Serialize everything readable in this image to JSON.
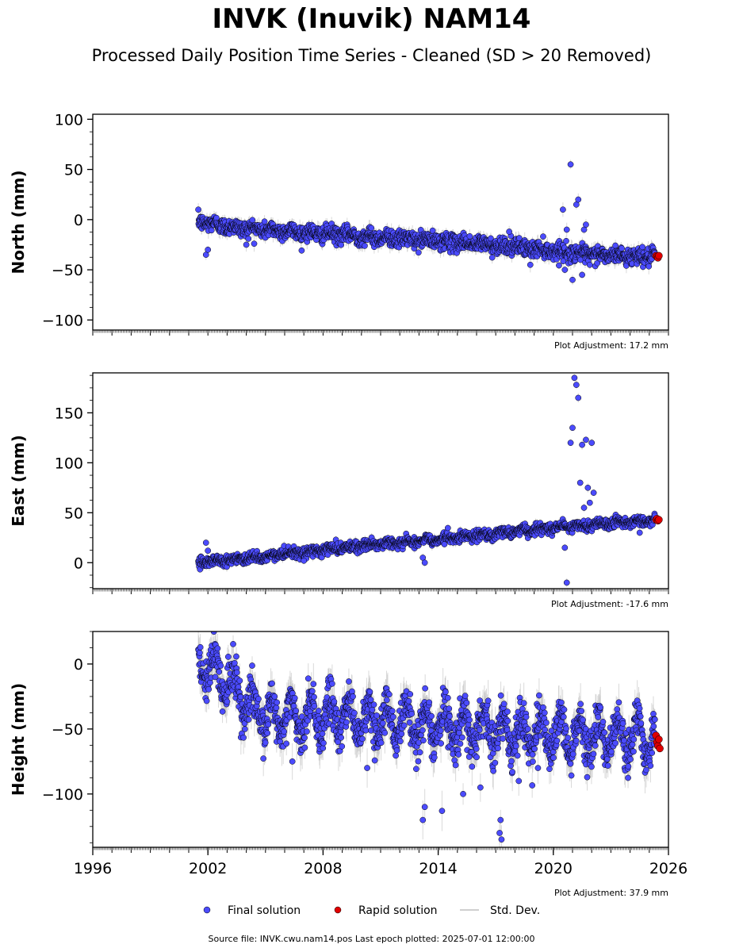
{
  "title": "INVK (Inuvik) NAM14",
  "subtitle": "Processed Daily Position Time Series - Cleaned (SD > 20 Removed)",
  "footer": "Source file: INVK.cwu.nam14.pos  Last epoch plotted: 2025-07-01 12:00:00",
  "colors": {
    "final": "#4b4bff",
    "rapid": "#e00000",
    "stddev": "#bfbfbf",
    "edge": "#000000"
  },
  "legend": [
    {
      "key": "final",
      "label": "Final solution"
    },
    {
      "key": "rapid",
      "label": "Rapid solution"
    },
    {
      "key": "stddev",
      "label": "Std. Dev."
    }
  ],
  "chart_data": [
    {
      "type": "scatter",
      "ylabel": "North (mm)",
      "xlim": [
        1996,
        2026
      ],
      "ylim": [
        -110,
        105
      ],
      "yticks": [
        -100,
        -50,
        0,
        50,
        100
      ],
      "adjustment": "Plot Adjustment: 17.2 mm",
      "trend_points": [
        [
          2001.5,
          -2
        ],
        [
          2003.5,
          -8
        ],
        [
          2008,
          -14
        ],
        [
          2012,
          -19
        ],
        [
          2016,
          -24
        ],
        [
          2018.5,
          -28
        ],
        [
          2020,
          -31
        ],
        [
          2022,
          -35
        ],
        [
          2025.5,
          -37
        ]
      ],
      "scatter_sd": 4,
      "seasonal_amp": 1.5,
      "outliers": [
        [
          2001.9,
          -35
        ],
        [
          2002.0,
          -30
        ],
        [
          2004.0,
          -25
        ],
        [
          2017.7,
          -12
        ],
        [
          2018.8,
          -45
        ],
        [
          2020.5,
          10
        ],
        [
          2020.6,
          -50
        ],
        [
          2020.7,
          -10
        ],
        [
          2020.9,
          55
        ],
        [
          2021.0,
          -60
        ],
        [
          2021.2,
          15
        ],
        [
          2021.3,
          20
        ],
        [
          2021.5,
          -55
        ],
        [
          2021.6,
          -10
        ],
        [
          2021.7,
          -5
        ],
        [
          2021.9,
          -45
        ]
      ],
      "rapid": [
        [
          2025.35,
          -36
        ],
        [
          2025.4,
          -37
        ],
        [
          2025.45,
          -38
        ],
        [
          2025.5,
          -36
        ]
      ]
    },
    {
      "type": "scatter",
      "ylabel": "East (mm)",
      "xlim": [
        1996,
        2026
      ],
      "ylim": [
        -26,
        190
      ],
      "yticks": [
        0,
        50,
        100,
        150
      ],
      "adjustment": "Plot Adjustment: -17.6 mm",
      "trend_points": [
        [
          2001.5,
          0
        ],
        [
          2005,
          6
        ],
        [
          2010,
          17
        ],
        [
          2013,
          22
        ],
        [
          2016,
          27
        ],
        [
          2019,
          33
        ],
        [
          2022,
          38
        ],
        [
          2025.5,
          43
        ]
      ],
      "scatter_sd": 2.5,
      "seasonal_amp": 1.5,
      "outliers": [
        [
          2001.9,
          20
        ],
        [
          2002.0,
          12
        ],
        [
          2007.0,
          2
        ],
        [
          2013.2,
          5
        ],
        [
          2013.3,
          0
        ],
        [
          2020.6,
          15
        ],
        [
          2020.7,
          -20
        ],
        [
          2020.9,
          120
        ],
        [
          2021.0,
          135
        ],
        [
          2021.1,
          185
        ],
        [
          2021.2,
          178
        ],
        [
          2021.3,
          165
        ],
        [
          2021.4,
          80
        ],
        [
          2021.5,
          118
        ],
        [
          2021.6,
          55
        ],
        [
          2021.7,
          123
        ],
        [
          2021.8,
          75
        ],
        [
          2021.9,
          60
        ],
        [
          2022.0,
          120
        ],
        [
          2022.1,
          70
        ],
        [
          2024.5,
          30
        ]
      ],
      "rapid": [
        [
          2025.35,
          43
        ],
        [
          2025.4,
          44
        ],
        [
          2025.45,
          42
        ],
        [
          2025.5,
          43
        ]
      ]
    },
    {
      "type": "scatter",
      "ylabel": "Height (mm)",
      "xlim": [
        1996,
        2026
      ],
      "ylim": [
        -141,
        25
      ],
      "yticks": [
        -100,
        -50,
        0
      ],
      "xticks": [
        1996,
        2002,
        2008,
        2014,
        2020,
        2026
      ],
      "adjustment": "Plot Adjustment: 37.9 mm",
      "trend_points": [
        [
          2001.5,
          0
        ],
        [
          2002.5,
          -5
        ],
        [
          2003.5,
          -25
        ],
        [
          2005,
          -40
        ],
        [
          2008,
          -40
        ],
        [
          2012,
          -45
        ],
        [
          2016,
          -50
        ],
        [
          2020,
          -55
        ],
        [
          2025.5,
          -58
        ]
      ],
      "scatter_sd": 8,
      "seasonal_amp": 14,
      "outliers": [
        [
          2013.2,
          -120
        ],
        [
          2013.3,
          -110
        ],
        [
          2014.2,
          -113
        ],
        [
          2015.3,
          -100
        ],
        [
          2016.2,
          -95
        ],
        [
          2017.2,
          -130
        ],
        [
          2017.3,
          -135
        ],
        [
          2017.25,
          -120
        ],
        [
          2018.2,
          -90
        ],
        [
          2019.2,
          -80
        ],
        [
          2006.4,
          -75
        ],
        [
          2010.3,
          -80
        ]
      ],
      "rapid": [
        [
          2025.35,
          -55
        ],
        [
          2025.4,
          -60
        ],
        [
          2025.45,
          -63
        ],
        [
          2025.5,
          -58
        ],
        [
          2025.55,
          -65
        ]
      ]
    }
  ]
}
